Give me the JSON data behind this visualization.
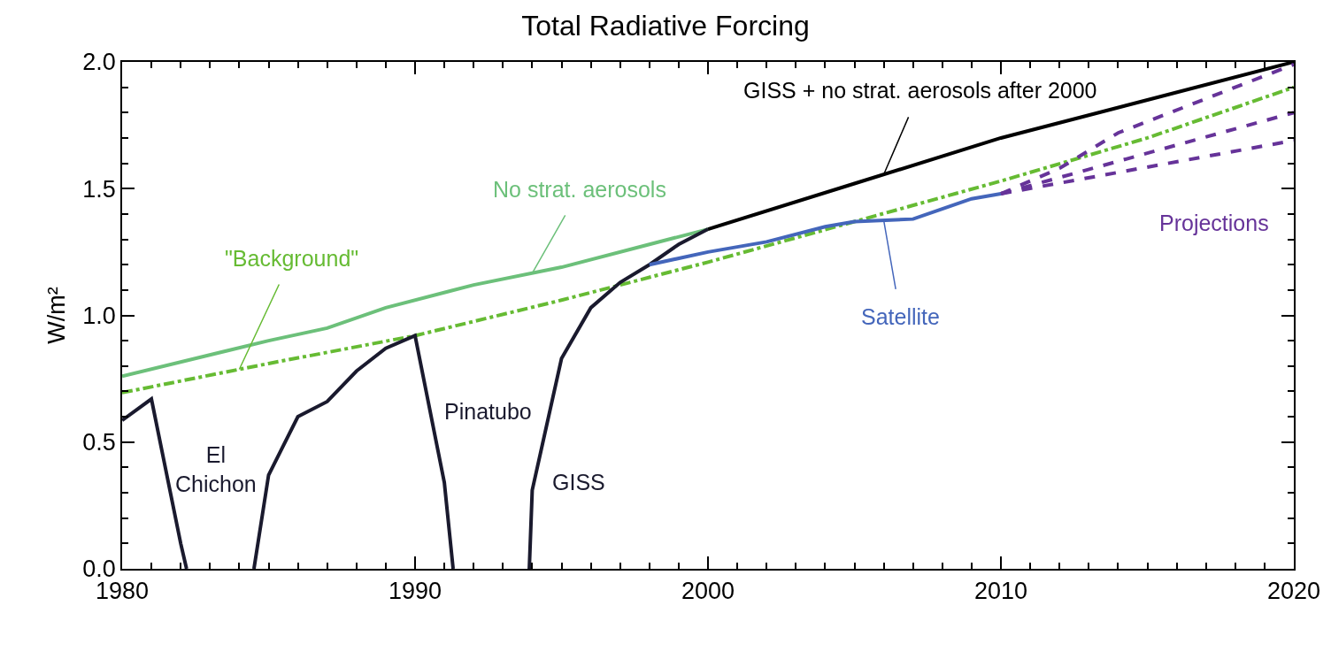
{
  "chart_data": {
    "type": "line",
    "title": "Total Radiative Forcing",
    "ylabel": "W/m²",
    "xlim": [
      1980,
      2020
    ],
    "ylim": [
      0,
      2.0
    ],
    "xticks": [
      1980,
      {
        "value": 1981,
        "label": null
      },
      {
        "value": 1982,
        "label": null
      },
      {
        "value": 1983,
        "label": null
      },
      {
        "value": 1984,
        "label": null
      },
      {
        "value": 1985,
        "label": null
      },
      {
        "value": 1986,
        "label": null
      },
      {
        "value": 1987,
        "label": null
      },
      {
        "value": 1988,
        "label": null
      },
      {
        "value": 1989,
        "label": null
      },
      1990,
      {
        "value": 1991,
        "label": null
      },
      {
        "value": 1992,
        "label": null
      },
      {
        "value": 1993,
        "label": null
      },
      {
        "value": 1994,
        "label": null
      },
      {
        "value": 1995,
        "label": null
      },
      {
        "value": 1996,
        "label": null
      },
      {
        "value": 1997,
        "label": null
      },
      {
        "value": 1998,
        "label": null
      },
      {
        "value": 1999,
        "label": null
      },
      2000,
      {
        "value": 2001,
        "label": null
      },
      {
        "value": 2002,
        "label": null
      },
      {
        "value": 2003,
        "label": null
      },
      {
        "value": 2004,
        "label": null
      },
      {
        "value": 2005,
        "label": null
      },
      {
        "value": 2006,
        "label": null
      },
      {
        "value": 2007,
        "label": null
      },
      {
        "value": 2008,
        "label": null
      },
      {
        "value": 2009,
        "label": null
      },
      2010,
      {
        "value": 2011,
        "label": null
      },
      {
        "value": 2012,
        "label": null
      },
      {
        "value": 2013,
        "label": null
      },
      {
        "value": 2014,
        "label": null
      },
      {
        "value": 2015,
        "label": null
      },
      {
        "value": 2016,
        "label": null
      },
      {
        "value": 2017,
        "label": null
      },
      {
        "value": 2018,
        "label": null
      },
      {
        "value": 2019,
        "label": null
      },
      2020
    ],
    "yticks": [
      {
        "value": 0,
        "label": "0.0"
      },
      {
        "value": 0.1,
        "label": null
      },
      {
        "value": 0.2,
        "label": null
      },
      {
        "value": 0.3,
        "label": null
      },
      {
        "value": 0.4,
        "label": null
      },
      0.5,
      {
        "value": 0.6,
        "label": null
      },
      {
        "value": 0.7,
        "label": null
      },
      {
        "value": 0.8,
        "label": null
      },
      {
        "value": 0.9,
        "label": null
      },
      {
        "value": 1.0,
        "label": "1.0"
      },
      {
        "value": 1.1,
        "label": null
      },
      {
        "value": 1.2,
        "label": null
      },
      {
        "value": 1.3,
        "label": null
      },
      {
        "value": 1.4,
        "label": null
      },
      1.5,
      {
        "value": 1.6,
        "label": null
      },
      {
        "value": 1.7,
        "label": null
      },
      {
        "value": 1.8,
        "label": null
      },
      {
        "value": 1.9,
        "label": null
      },
      {
        "value": 2.0,
        "label": "2.0"
      }
    ],
    "series": [
      {
        "color": "#66bb33",
        "line_style": "dashdot",
        "x": [
          1980,
          1985,
          1990,
          1995,
          2000,
          2005,
          2010,
          2015,
          2020
        ],
        "values": [
          0.695,
          0.81,
          0.92,
          1.06,
          1.21,
          1.37,
          1.53,
          1.7,
          1.9
        ]
      },
      {
        "color": "#6cc07a",
        "line_style": "solid",
        "x": [
          1980,
          1985,
          1987,
          1989,
          1992,
          1995,
          1998,
          2000
        ],
        "values": [
          0.76,
          0.9,
          0.95,
          1.03,
          1.12,
          1.19,
          1.28,
          1.34
        ]
      },
      {
        "color": "#1a1a2e",
        "line_style": "solid",
        "x": [
          1980,
          1981,
          1982,
          1982.2,
          1982.3,
          1984.5,
          1985,
          1986,
          1987,
          1988,
          1989,
          1990,
          1991,
          1991.3,
          1991.4,
          1993.9,
          1994,
          1995,
          1996,
          1997,
          1998,
          1999,
          2000
        ],
        "values": [
          0.586,
          0.67,
          0.1,
          0,
          null,
          0,
          0.37,
          0.6,
          0.66,
          0.78,
          0.87,
          0.92,
          0.34,
          0,
          null,
          0,
          0.31,
          0.83,
          1.03,
          1.13,
          1.2,
          1.28,
          1.34
        ]
      },
      {
        "color": "#000000",
        "line_style": "solid",
        "x": [
          2000,
          2005,
          2010,
          2015,
          2020
        ],
        "values": [
          1.34,
          1.52,
          1.7,
          1.85,
          2.0
        ]
      },
      {
        "color": "#4466bb",
        "line_style": "solid",
        "x": [
          1998,
          2000,
          2002,
          2004,
          2005,
          2007,
          2008,
          2009,
          2010
        ],
        "values": [
          1.2,
          1.25,
          1.29,
          1.35,
          1.37,
          1.38,
          1.42,
          1.46,
          1.48
        ]
      },
      {
        "color": "#663399",
        "line_style": "dashed",
        "x": [
          2010,
          2012,
          2014,
          2020
        ],
        "values": [
          1.48,
          1.58,
          1.72,
          1.99
        ]
      },
      {
        "color": "#663399",
        "line_style": "dashed",
        "x": [
          2010,
          2020
        ],
        "values": [
          1.48,
          1.8
        ]
      },
      {
        "color": "#663399",
        "line_style": "dashed",
        "x": [
          2010,
          2020
        ],
        "values": [
          1.48,
          1.69
        ]
      }
    ],
    "annotations": [
      {
        "text": "GISS + no strat. aerosols after 2000",
        "x": 2006,
        "y": 1.556
      },
      {
        "text": "No strat. aerosols",
        "x": 1994,
        "y": 1.166
      },
      {
        "text": "\"Background\"",
        "x": 1984,
        "y": 0.787
      },
      {
        "text": "Satellite",
        "x": 2006,
        "y": 1.375
      },
      "Projections",
      "El\nChichon",
      "Pinatubo",
      "GISS"
    ]
  }
}
